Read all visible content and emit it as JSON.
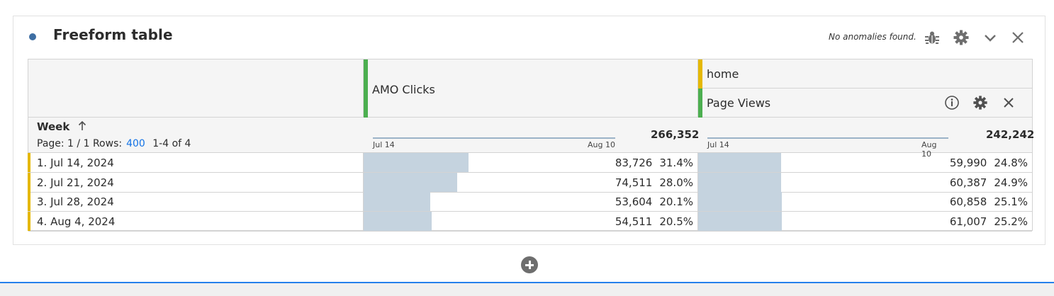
{
  "panel": {
    "title": "Freeform table",
    "anomaly_text": "No anomalies found.",
    "icons": [
      "bug-icon",
      "gear-icon",
      "chevron-down-icon",
      "close-icon"
    ]
  },
  "table": {
    "dimension_label": "Week",
    "pager": {
      "page_text": "Page: 1 / 1",
      "rows_label": "Rows:",
      "rows_value": "400",
      "range_text": "1-4 of 4"
    },
    "columns": [
      {
        "segment": "",
        "metric": "AMO Clicks",
        "total": "266,352",
        "spark_start": "Jul 14",
        "spark_end": "Aug 10",
        "handle_color": "#4caf50"
      },
      {
        "segment": "home",
        "metric": "Page Views",
        "total": "242,242",
        "spark_start": "Jul 14",
        "spark_end": "Aug 10",
        "segment_color": "#e5b800",
        "handle_color": "#4caf50"
      }
    ],
    "rows": [
      {
        "label": "1.  Jul 14, 2024",
        "c1_value": "83,726",
        "c1_pct": "31.4%",
        "c1_share": 0.314,
        "c2_value": "59,990",
        "c2_pct": "24.8%",
        "c2_share": 0.248
      },
      {
        "label": "2.  Jul 21, 2024",
        "c1_value": "74,511",
        "c1_pct": "28.0%",
        "c1_share": 0.28,
        "c2_value": "60,387",
        "c2_pct": "24.9%",
        "c2_share": 0.249
      },
      {
        "label": "3.  Jul 28, 2024",
        "c1_value": "53,604",
        "c1_pct": "20.1%",
        "c1_share": 0.201,
        "c2_value": "60,858",
        "c2_pct": "25.1%",
        "c2_share": 0.251
      },
      {
        "label": "4.  Aug 4, 2024",
        "c1_value": "54,511",
        "c1_pct": "20.5%",
        "c1_share": 0.205,
        "c2_value": "61,007",
        "c2_pct": "25.2%",
        "c2_share": 0.252
      }
    ]
  },
  "colors": {
    "accent_blue": "#1473e6",
    "bar_fill": "#c5d3df",
    "row_accent": "#e5b800"
  }
}
